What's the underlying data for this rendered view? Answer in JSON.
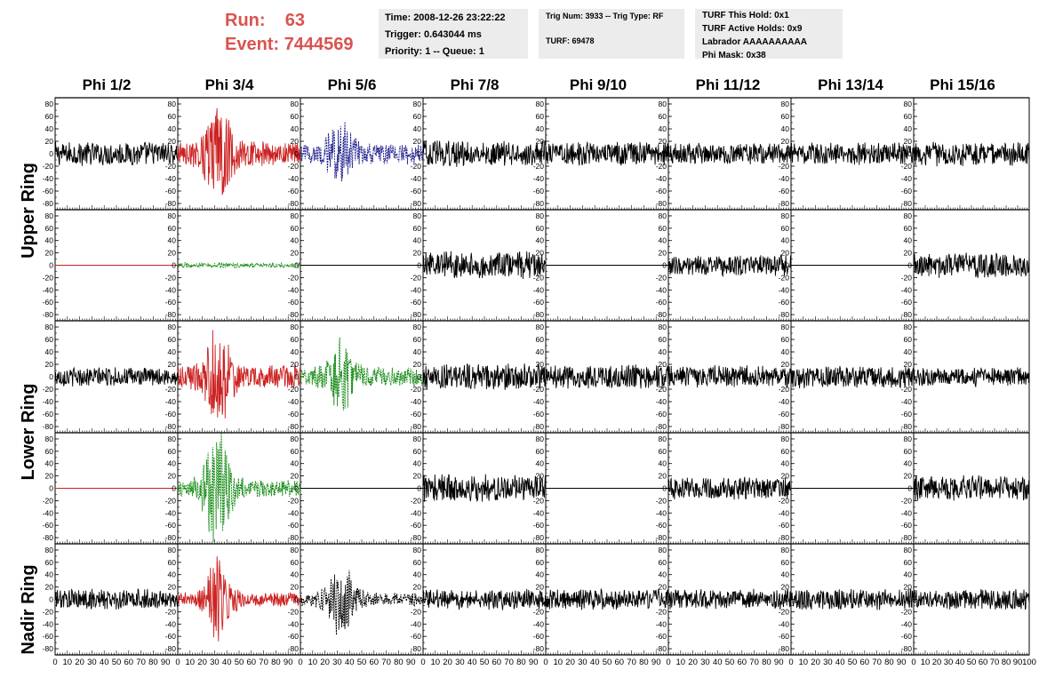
{
  "run": {
    "run_label": "Run:",
    "run_value": "63",
    "event_label": "Event:",
    "event_value": "7444569"
  },
  "time_box": {
    "line1": "Time: 2008-12-26 23:22:22",
    "line2": "Trigger: 0.643044 ms",
    "line3": "Priority: 1 -- Queue: 1"
  },
  "trig_box": {
    "line1": "Trig Num: 3933 -- Trig Type: RF",
    "line2": "TURF: 69478"
  },
  "turf_box": {
    "line1": "TURF This Hold: 0x1",
    "line2": "TURF Active Holds: 0x9",
    "line3": "Labrador AAAAAAAAAA",
    "line4": "Phi Mask: 0x38"
  },
  "columns": [
    "Phi 1/2",
    "Phi 3/4",
    "Phi 5/6",
    "Phi 7/8",
    "Phi 9/10",
    "Phi 11/12",
    "Phi 13/14",
    "Phi 15/16"
  ],
  "ring_labels": [
    "Upper Ring",
    "Lower Ring",
    "Nadir Ring"
  ],
  "colors": {
    "red": "#cc2222",
    "blue": "#1a1a8c",
    "green": "#118811",
    "black": "#000000",
    "header_red": "#d9534f"
  },
  "chart_data": {
    "type": "line",
    "title": "",
    "xlabel": "",
    "ylabel": "",
    "x_ticks": [
      "0",
      "10",
      "20",
      "30",
      "40",
      "50",
      "60",
      "70",
      "80",
      "90",
      "100"
    ],
    "y_ticks": [
      "80",
      "60",
      "40",
      "20",
      "0",
      "-20",
      "-40",
      "-60",
      "-80"
    ],
    "xlim": [
      0,
      100
    ],
    "ylim": [
      -90,
      90
    ],
    "grid": false,
    "panel_rows": 5,
    "panel_cols": 8,
    "series": [
      {
        "row": 0,
        "col": 0,
        "color": "black",
        "style": "solid",
        "amp": 14,
        "burst": 0
      },
      {
        "row": 0,
        "col": 1,
        "color": "red",
        "style": "solid",
        "amp": 14,
        "burst": 48
      },
      {
        "row": 0,
        "col": 2,
        "color": "blue",
        "style": "dashed",
        "amp": 12,
        "burst": 30
      },
      {
        "row": 0,
        "col": 3,
        "color": "black",
        "style": "solid",
        "amp": 15,
        "burst": 0
      },
      {
        "row": 0,
        "col": 4,
        "color": "black",
        "style": "solid",
        "amp": 14,
        "burst": 0
      },
      {
        "row": 0,
        "col": 5,
        "color": "black",
        "style": "solid",
        "amp": 12,
        "burst": 0
      },
      {
        "row": 0,
        "col": 6,
        "color": "black",
        "style": "solid",
        "amp": 13,
        "burst": 0
      },
      {
        "row": 0,
        "col": 7,
        "color": "black",
        "style": "solid",
        "amp": 14,
        "burst": 0
      },
      {
        "row": 1,
        "col": 0,
        "color": "red",
        "style": "solid",
        "amp": 0,
        "burst": 0
      },
      {
        "row": 1,
        "col": 1,
        "color": "green",
        "style": "dashed",
        "amp": 3,
        "burst": 0
      },
      {
        "row": 1,
        "col": 2,
        "color": "black",
        "style": "solid",
        "amp": 0,
        "burst": 0
      },
      {
        "row": 1,
        "col": 3,
        "color": "black",
        "style": "solid",
        "amp": 16,
        "burst": 0
      },
      {
        "row": 1,
        "col": 4,
        "color": "black",
        "style": "solid",
        "amp": 0,
        "burst": 0
      },
      {
        "row": 1,
        "col": 5,
        "color": "black",
        "style": "solid",
        "amp": 12,
        "burst": 0
      },
      {
        "row": 1,
        "col": 6,
        "color": "black",
        "style": "solid",
        "amp": 0,
        "burst": 0
      },
      {
        "row": 1,
        "col": 7,
        "color": "black",
        "style": "solid",
        "amp": 15,
        "burst": 0
      },
      {
        "row": 2,
        "col": 0,
        "color": "black",
        "style": "solid",
        "amp": 11,
        "burst": 0
      },
      {
        "row": 2,
        "col": 1,
        "color": "red",
        "style": "solid",
        "amp": 14,
        "burst": 45
      },
      {
        "row": 2,
        "col": 2,
        "color": "green",
        "style": "dashed",
        "amp": 12,
        "burst": 35
      },
      {
        "row": 2,
        "col": 3,
        "color": "black",
        "style": "solid",
        "amp": 15,
        "burst": 0
      },
      {
        "row": 2,
        "col": 4,
        "color": "black",
        "style": "solid",
        "amp": 14,
        "burst": 0
      },
      {
        "row": 2,
        "col": 5,
        "color": "black",
        "style": "solid",
        "amp": 13,
        "burst": 0
      },
      {
        "row": 2,
        "col": 6,
        "color": "black",
        "style": "solid",
        "amp": 13,
        "burst": 0
      },
      {
        "row": 2,
        "col": 7,
        "color": "black",
        "style": "solid",
        "amp": 11,
        "burst": 0
      },
      {
        "row": 3,
        "col": 0,
        "color": "red",
        "style": "solid",
        "amp": 0,
        "burst": 0
      },
      {
        "row": 3,
        "col": 1,
        "color": "green",
        "style": "dashed",
        "amp": 10,
        "burst": 70
      },
      {
        "row": 3,
        "col": 2,
        "color": "black",
        "style": "solid",
        "amp": 0,
        "burst": 0
      },
      {
        "row": 3,
        "col": 3,
        "color": "black",
        "style": "solid",
        "amp": 16,
        "burst": 0
      },
      {
        "row": 3,
        "col": 4,
        "color": "black",
        "style": "solid",
        "amp": 0,
        "burst": 0
      },
      {
        "row": 3,
        "col": 5,
        "color": "black",
        "style": "solid",
        "amp": 13,
        "burst": 0
      },
      {
        "row": 3,
        "col": 6,
        "color": "black",
        "style": "solid",
        "amp": 0,
        "burst": 0
      },
      {
        "row": 3,
        "col": 7,
        "color": "black",
        "style": "solid",
        "amp": 15,
        "burst": 0
      },
      {
        "row": 4,
        "col": 0,
        "color": "black",
        "style": "solid",
        "amp": 12,
        "burst": 0
      },
      {
        "row": 4,
        "col": 1,
        "color": "red",
        "style": "solid",
        "amp": 8,
        "burst": 42
      },
      {
        "row": 4,
        "col": 2,
        "color": "black",
        "style": "dashed",
        "amp": 8,
        "burst": 38
      },
      {
        "row": 4,
        "col": 3,
        "color": "black",
        "style": "solid",
        "amp": 12,
        "burst": 0
      },
      {
        "row": 4,
        "col": 4,
        "color": "black",
        "style": "solid",
        "amp": 12,
        "burst": 0
      },
      {
        "row": 4,
        "col": 5,
        "color": "black",
        "style": "solid",
        "amp": 12,
        "burst": 0
      },
      {
        "row": 4,
        "col": 6,
        "color": "black",
        "style": "solid",
        "amp": 12,
        "burst": 0
      },
      {
        "row": 4,
        "col": 7,
        "color": "black",
        "style": "solid",
        "amp": 12,
        "burst": 0
      }
    ]
  }
}
